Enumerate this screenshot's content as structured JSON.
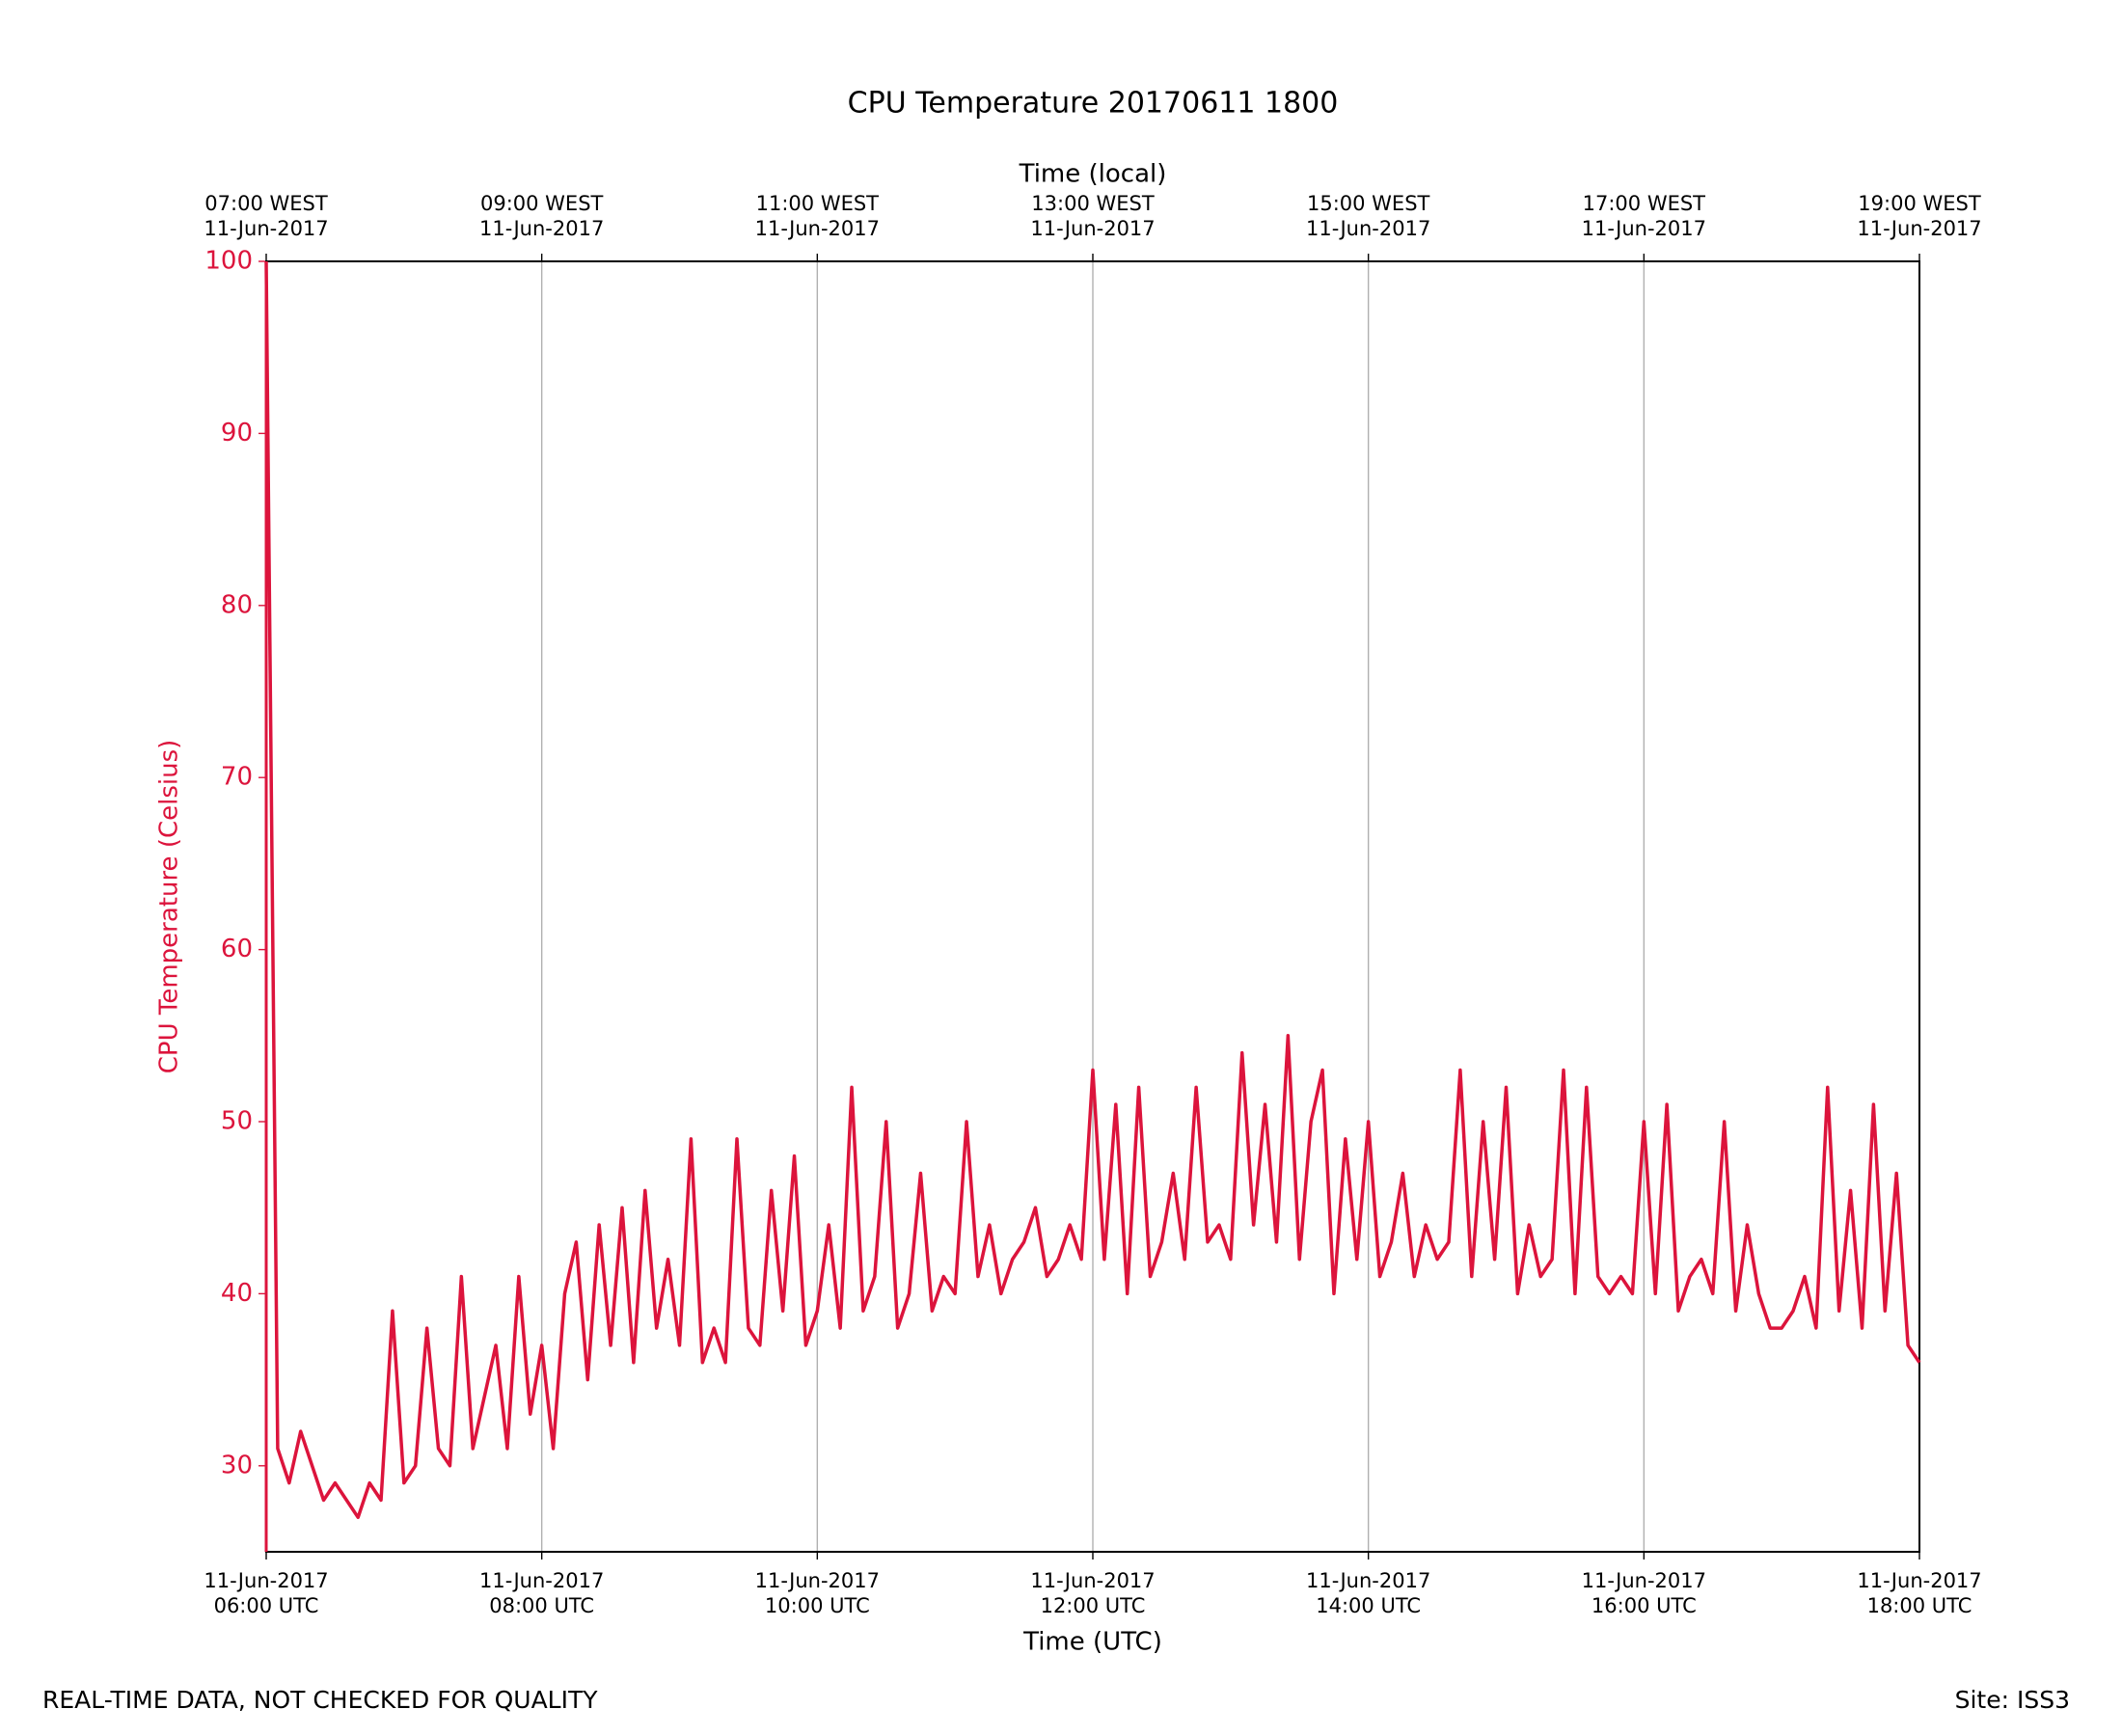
{
  "chart_data": {
    "type": "line",
    "title": "CPU Temperature 20170611 1800",
    "xlabel": "Time (UTC)",
    "x2label": "Time (local)",
    "ylabel": "CPU Temperature (Celsius)",
    "footer_left": "REAL-TIME DATA, NOT CHECKED FOR QUALITY",
    "footer_right": "Site: ISS3",
    "xlim": [
      "2017-06-11 06:00",
      "2017-06-11 18:00"
    ],
    "ylim": [
      25,
      100
    ],
    "yticks": [
      30,
      40,
      50,
      60,
      70,
      80,
      90,
      100
    ],
    "xticks": [
      {
        "value": "2017-06-11 06:00",
        "label": [
          "11-Jun-2017",
          "06:00 UTC"
        ]
      },
      {
        "value": "2017-06-11 08:00",
        "label": [
          "11-Jun-2017",
          "08:00 UTC"
        ]
      },
      {
        "value": "2017-06-11 10:00",
        "label": [
          "11-Jun-2017",
          "10:00 UTC"
        ]
      },
      {
        "value": "2017-06-11 12:00",
        "label": [
          "11-Jun-2017",
          "12:00 UTC"
        ]
      },
      {
        "value": "2017-06-11 14:00",
        "label": [
          "11-Jun-2017",
          "14:00 UTC"
        ]
      },
      {
        "value": "2017-06-11 16:00",
        "label": [
          "11-Jun-2017",
          "16:00 UTC"
        ]
      },
      {
        "value": "2017-06-11 18:00",
        "label": [
          "11-Jun-2017",
          "18:00 UTC"
        ]
      }
    ],
    "x2ticks": [
      {
        "value": "2017-06-11 06:00",
        "label": [
          "07:00 WEST",
          "11-Jun-2017"
        ]
      },
      {
        "value": "2017-06-11 08:00",
        "label": [
          "09:00 WEST",
          "11-Jun-2017"
        ]
      },
      {
        "value": "2017-06-11 10:00",
        "label": [
          "11:00 WEST",
          "11-Jun-2017"
        ]
      },
      {
        "value": "2017-06-11 12:00",
        "label": [
          "13:00 WEST",
          "11-Jun-2017"
        ]
      },
      {
        "value": "2017-06-11 14:00",
        "label": [
          "15:00 WEST",
          "11-Jun-2017"
        ]
      },
      {
        "value": "2017-06-11 16:00",
        "label": [
          "17:00 WEST",
          "11-Jun-2017"
        ]
      },
      {
        "value": "2017-06-11 18:00",
        "label": [
          "19:00 WEST",
          "11-Jun-2017"
        ]
      }
    ],
    "grid": true,
    "x": [
      "2017-06-11 06:00",
      "2017-06-11 06:05",
      "2017-06-11 06:10",
      "2017-06-11 06:15",
      "2017-06-11 06:20",
      "2017-06-11 06:25",
      "2017-06-11 06:30",
      "2017-06-11 06:35",
      "2017-06-11 06:40",
      "2017-06-11 06:45",
      "2017-06-11 06:50",
      "2017-06-11 06:55",
      "2017-06-11 07:00",
      "2017-06-11 07:05",
      "2017-06-11 07:10",
      "2017-06-11 07:15",
      "2017-06-11 07:20",
      "2017-06-11 07:25",
      "2017-06-11 07:30",
      "2017-06-11 07:35",
      "2017-06-11 07:40",
      "2017-06-11 07:45",
      "2017-06-11 07:50",
      "2017-06-11 07:55",
      "2017-06-11 08:00",
      "2017-06-11 08:05",
      "2017-06-11 08:10",
      "2017-06-11 08:15",
      "2017-06-11 08:20",
      "2017-06-11 08:25",
      "2017-06-11 08:30",
      "2017-06-11 08:35",
      "2017-06-11 08:40",
      "2017-06-11 08:45",
      "2017-06-11 08:50",
      "2017-06-11 08:55",
      "2017-06-11 09:00",
      "2017-06-11 09:05",
      "2017-06-11 09:10",
      "2017-06-11 09:15",
      "2017-06-11 09:20",
      "2017-06-11 09:25",
      "2017-06-11 09:30",
      "2017-06-11 09:35",
      "2017-06-11 09:40",
      "2017-06-11 09:45",
      "2017-06-11 09:50",
      "2017-06-11 09:55",
      "2017-06-11 10:00",
      "2017-06-11 10:05",
      "2017-06-11 10:10",
      "2017-06-11 10:15",
      "2017-06-11 10:20",
      "2017-06-11 10:25",
      "2017-06-11 10:30",
      "2017-06-11 10:35",
      "2017-06-11 10:40",
      "2017-06-11 10:45",
      "2017-06-11 10:50",
      "2017-06-11 10:55",
      "2017-06-11 11:00",
      "2017-06-11 11:05",
      "2017-06-11 11:10",
      "2017-06-11 11:15",
      "2017-06-11 11:20",
      "2017-06-11 11:25",
      "2017-06-11 11:30",
      "2017-06-11 11:35",
      "2017-06-11 11:40",
      "2017-06-11 11:45",
      "2017-06-11 11:50",
      "2017-06-11 11:55",
      "2017-06-11 12:00",
      "2017-06-11 12:05",
      "2017-06-11 12:10",
      "2017-06-11 12:15",
      "2017-06-11 12:20",
      "2017-06-11 12:25",
      "2017-06-11 12:30",
      "2017-06-11 12:35",
      "2017-06-11 12:40",
      "2017-06-11 12:45",
      "2017-06-11 12:50",
      "2017-06-11 12:55",
      "2017-06-11 13:00",
      "2017-06-11 13:05",
      "2017-06-11 13:10",
      "2017-06-11 13:15",
      "2017-06-11 13:20",
      "2017-06-11 13:25",
      "2017-06-11 13:30",
      "2017-06-11 13:35",
      "2017-06-11 13:40",
      "2017-06-11 13:45",
      "2017-06-11 13:50",
      "2017-06-11 13:55",
      "2017-06-11 14:00",
      "2017-06-11 14:05",
      "2017-06-11 14:10",
      "2017-06-11 14:15",
      "2017-06-11 14:20",
      "2017-06-11 14:25",
      "2017-06-11 14:30",
      "2017-06-11 14:35",
      "2017-06-11 14:40",
      "2017-06-11 14:45",
      "2017-06-11 14:50",
      "2017-06-11 14:55",
      "2017-06-11 15:00",
      "2017-06-11 15:05",
      "2017-06-11 15:10",
      "2017-06-11 15:15",
      "2017-06-11 15:20",
      "2017-06-11 15:25",
      "2017-06-11 15:30",
      "2017-06-11 15:35",
      "2017-06-11 15:40",
      "2017-06-11 15:45",
      "2017-06-11 15:50",
      "2017-06-11 15:55",
      "2017-06-11 16:00",
      "2017-06-11 16:05",
      "2017-06-11 16:10",
      "2017-06-11 16:15",
      "2017-06-11 16:20",
      "2017-06-11 16:25",
      "2017-06-11 16:30",
      "2017-06-11 16:35",
      "2017-06-11 16:40",
      "2017-06-11 16:45",
      "2017-06-11 16:50",
      "2017-06-11 16:55",
      "2017-06-11 17:00",
      "2017-06-11 17:05",
      "2017-06-11 17:10",
      "2017-06-11 17:15",
      "2017-06-11 17:20",
      "2017-06-11 17:25",
      "2017-06-11 17:30",
      "2017-06-11 17:35",
      "2017-06-11 17:40",
      "2017-06-11 17:45",
      "2017-06-11 17:50",
      "2017-06-11 17:55",
      "2017-06-11 18:00"
    ],
    "series": [
      {
        "color": "#dc143c",
        "values": [
          100,
          31,
          29,
          32,
          30,
          28,
          29,
          28,
          27,
          29,
          28,
          39,
          29,
          30,
          38,
          31,
          30,
          41,
          31,
          34,
          37,
          31,
          41,
          33,
          37,
          31,
          40,
          43,
          35,
          44,
          37,
          45,
          36,
          46,
          38,
          42,
          37,
          49,
          36,
          38,
          36,
          49,
          38,
          37,
          46,
          39,
          48,
          37,
          39,
          44,
          38,
          52,
          39,
          41,
          50,
          38,
          40,
          47,
          39,
          41,
          40,
          50,
          41,
          44,
          40,
          42,
          43,
          45,
          41,
          42,
          44,
          42,
          53,
          42,
          51,
          40,
          52,
          41,
          43,
          47,
          42,
          52,
          43,
          44,
          42,
          54,
          44,
          51,
          43,
          55,
          42,
          50,
          53,
          40,
          49,
          42,
          50,
          41,
          43,
          47,
          41,
          44,
          42,
          43,
          53,
          41,
          50,
          42,
          52,
          40,
          44,
          41,
          42,
          53,
          40,
          52,
          41,
          40,
          41,
          40,
          50,
          40,
          51,
          39,
          41,
          42,
          40,
          50,
          39,
          44,
          40,
          38,
          38,
          39,
          41,
          38,
          52,
          39,
          46,
          38,
          51,
          39,
          47,
          37,
          36
        ]
      }
    ]
  }
}
